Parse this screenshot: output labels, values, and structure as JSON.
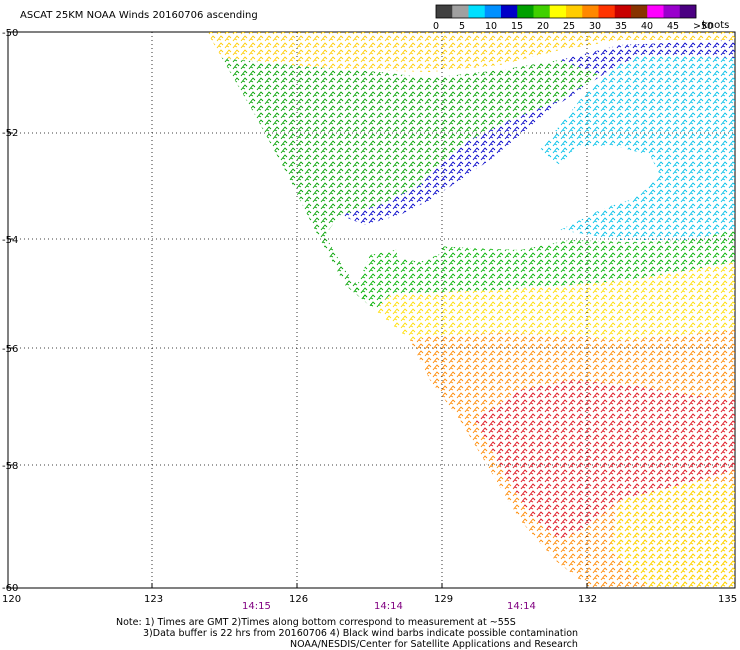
{
  "title": "ASCAT 25KM NOAA Winds 20160706 ascending",
  "legend": {
    "labels": [
      "0",
      "5",
      "10",
      "15",
      "20",
      "25",
      "30",
      "35",
      "40",
      "45",
      ">50"
    ],
    "unit": "knots",
    "colors": [
      "#404040",
      "#a0a0a0",
      "#00e0ff",
      "#0090ff",
      "#0000c8",
      "#00a000",
      "#40d000",
      "#ffff00",
      "#ffcc00",
      "#ff8800",
      "#ff3300",
      "#c80000",
      "#883300",
      "#ff00ff",
      "#9900cc",
      "#4b0082"
    ]
  },
  "axes": {
    "lat_labels": [
      "-50",
      "-52",
      "-54",
      "-56",
      "-58",
      "-60"
    ],
    "lon_labels": [
      "120",
      "123",
      "126",
      "129",
      "132",
      "135"
    ]
  },
  "times": [
    "14:15",
    "14:14",
    "14:14"
  ],
  "notes": [
    "Note: 1) Times are GMT 2)Times along bottom correspond to measurement at ~55S",
    "3)Data buffer is 22 hrs from 20160706 4) Black wind barbs indicate possible contamination",
    "NOAA/NESDIS/Center for Satellite Applications and Research"
  ],
  "wind_regions": [
    {
      "name": "north-yellow-band",
      "color": "#ffcc00"
    },
    {
      "name": "green-west-band",
      "color": "#00a000"
    },
    {
      "name": "blue-band",
      "color": "#0000c8"
    },
    {
      "name": "cyan-east",
      "color": "#00c0e8"
    },
    {
      "name": "green-mid-band",
      "color": "#00b000"
    },
    {
      "name": "yellow-south",
      "color": "#ffdd00"
    },
    {
      "name": "orange-south",
      "color": "#ff8800"
    },
    {
      "name": "red-core",
      "color": "#dd1a3a"
    }
  ]
}
